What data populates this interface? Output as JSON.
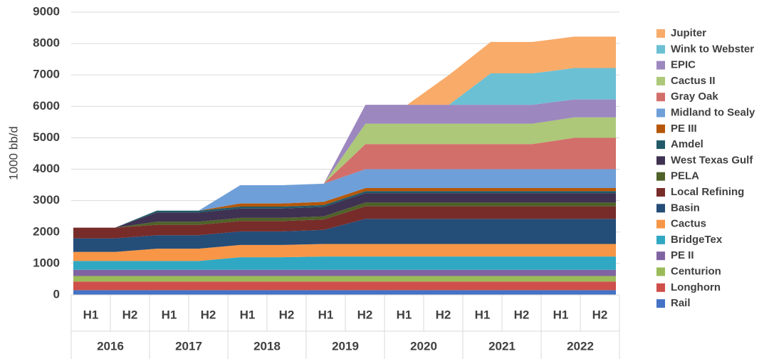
{
  "chart_data": {
    "type": "stacked_area",
    "y_label": "1000 bb/d",
    "categories": [
      "H1",
      "H2",
      "H1",
      "H2",
      "H1",
      "H2",
      "H1",
      "H2",
      "H1",
      "H2",
      "H1",
      "H2",
      "H1",
      "H2"
    ],
    "groups": [
      "2016",
      "2017",
      "2018",
      "2019",
      "2020",
      "2021",
      "2022"
    ],
    "ylim": [
      0,
      9000
    ],
    "yticks": [
      0,
      1000,
      2000,
      3000,
      4000,
      5000,
      6000,
      7000,
      8000,
      9000
    ],
    "grid": true,
    "legend": "right",
    "series": [
      {
        "name": "Rail",
        "color": "#4472c4",
        "values": [
          150,
          150,
          150,
          150,
          150,
          150,
          150,
          150,
          150,
          150,
          150,
          150,
          150,
          150
        ]
      },
      {
        "name": "Longhorn",
        "color": "#cf4f4b",
        "values": [
          275,
          275,
          275,
          275,
          275,
          275,
          275,
          275,
          275,
          275,
          275,
          275,
          275,
          275
        ]
      },
      {
        "name": "Centurion",
        "color": "#9bbb59",
        "values": [
          175,
          175,
          175,
          175,
          175,
          175,
          175,
          175,
          175,
          175,
          175,
          175,
          175,
          175
        ]
      },
      {
        "name": "PE II",
        "color": "#8064a2",
        "values": [
          200,
          200,
          200,
          200,
          200,
          200,
          200,
          200,
          200,
          200,
          200,
          200,
          200,
          200
        ]
      },
      {
        "name": "BridgeTex",
        "color": "#31a8c3",
        "values": [
          280,
          280,
          280,
          280,
          400,
          400,
          420,
          420,
          420,
          420,
          420,
          420,
          420,
          420
        ]
      },
      {
        "name": "Cactus",
        "color": "#f79646",
        "values": [
          290,
          290,
          390,
          390,
          390,
          390,
          400,
          400,
          400,
          400,
          400,
          400,
          400,
          400
        ]
      },
      {
        "name": "Basin",
        "color": "#244d78",
        "values": [
          430,
          430,
          430,
          430,
          430,
          430,
          450,
          800,
          800,
          800,
          800,
          800,
          800,
          800
        ]
      },
      {
        "name": "Local Refining",
        "color": "#772c2a",
        "values": [
          340,
          340,
          330,
          330,
          330,
          330,
          330,
          400,
          400,
          400,
          400,
          400,
          400,
          400
        ]
      },
      {
        "name": "PELA",
        "color": "#4f6228",
        "values": [
          0,
          0,
          100,
          100,
          100,
          100,
          100,
          120,
          120,
          120,
          120,
          120,
          120,
          120
        ]
      },
      {
        "name": "West Texas Gulf",
        "color": "#3f3151",
        "values": [
          0,
          0,
          290,
          290,
          300,
          300,
          300,
          300,
          300,
          300,
          300,
          300,
          300,
          300
        ]
      },
      {
        "name": "Amdel",
        "color": "#215968",
        "values": [
          0,
          0,
          60,
          60,
          60,
          60,
          60,
          60,
          60,
          60,
          60,
          60,
          60,
          60
        ]
      },
      {
        "name": "PE III",
        "color": "#b65708",
        "values": [
          0,
          0,
          0,
          0,
          100,
          100,
          100,
          100,
          100,
          100,
          100,
          100,
          100,
          100
        ]
      },
      {
        "name": "Midland to Sealy",
        "color": "#6f9fd8",
        "values": [
          0,
          0,
          0,
          0,
          580,
          580,
          580,
          600,
          600,
          600,
          600,
          600,
          600,
          600
        ]
      },
      {
        "name": "Gray Oak",
        "color": "#d26f6b",
        "values": [
          0,
          0,
          0,
          0,
          0,
          0,
          0,
          800,
          800,
          800,
          800,
          800,
          1000,
          1000
        ]
      },
      {
        "name": "Cactus II",
        "color": "#adc878",
        "values": [
          0,
          0,
          0,
          0,
          0,
          0,
          0,
          650,
          650,
          650,
          650,
          650,
          650,
          650
        ]
      },
      {
        "name": "EPIC",
        "color": "#9c87bf",
        "values": [
          0,
          0,
          0,
          0,
          0,
          0,
          0,
          600,
          600,
          600,
          600,
          600,
          570,
          570
        ]
      },
      {
        "name": "Wink to Webster",
        "color": "#6cc0d4",
        "values": [
          0,
          0,
          0,
          0,
          0,
          0,
          0,
          0,
          0,
          0,
          1000,
          1000,
          1000,
          1000
        ]
      },
      {
        "name": "Jupiter",
        "color": "#f9ab6a",
        "values": [
          0,
          0,
          0,
          0,
          0,
          0,
          0,
          0,
          0,
          950,
          1000,
          1000,
          1000,
          1000
        ]
      }
    ]
  }
}
